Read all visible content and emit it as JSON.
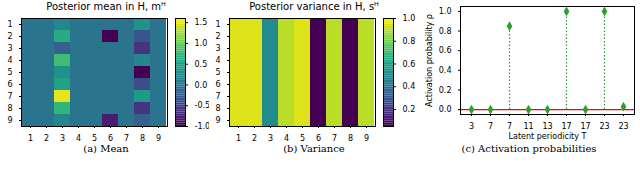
{
  "chart_data": [
    {
      "type": "heatmap",
      "title": "Posterior mean in H, mᴴ",
      "caption": "(a) Mean",
      "x": [
        1,
        2,
        3,
        4,
        5,
        6,
        7,
        8,
        9
      ],
      "y": [
        1,
        2,
        3,
        4,
        5,
        6,
        7,
        8,
        9
      ],
      "cells": [
        [
          0,
          0,
          0.2,
          0,
          0,
          0,
          0,
          0.3,
          0
        ],
        [
          0,
          0,
          0.6,
          0,
          0,
          -1.0,
          0,
          -0.3,
          0
        ],
        [
          0,
          0,
          -0.2,
          0,
          0,
          0,
          0,
          -0.6,
          0
        ],
        [
          0,
          0,
          0.8,
          0,
          0,
          0,
          0,
          0.2,
          0
        ],
        [
          0,
          0,
          0.3,
          0,
          0,
          0,
          0,
          -1.0,
          0
        ],
        [
          0,
          0,
          0.5,
          0,
          0,
          0,
          0,
          -0.4,
          0
        ],
        [
          0,
          0,
          1.5,
          0,
          0,
          0,
          0,
          0.4,
          0
        ],
        [
          0,
          0,
          0.7,
          0,
          0,
          0,
          0,
          -0.6,
          0
        ],
        [
          0,
          0,
          0.2,
          0,
          0,
          -0.8,
          0,
          -0.2,
          0
        ]
      ],
      "colorbar_lim": [
        -1.0,
        1.6
      ],
      "colorbar_ticks": [
        {
          "value": -1,
          "label": "-1.0"
        },
        -0.5,
        {
          "value": 0,
          "label": "0.0"
        },
        0.5,
        {
          "value": 1,
          "label": "1.0"
        },
        1.5
      ]
    },
    {
      "type": "heatmap",
      "title": "Posterior variance in H, sᴴ",
      "caption": "(b) Variance",
      "x": [
        1,
        2,
        3,
        4,
        5,
        6,
        7,
        8,
        9
      ],
      "y": [
        1,
        2,
        3,
        4,
        5,
        6,
        7,
        8,
        9
      ],
      "cells": [
        [
          0.95,
          0.95,
          0.5,
          0.9,
          0.95,
          0.05,
          0.9,
          0.05,
          0.9
        ],
        [
          0.95,
          0.95,
          0.5,
          0.9,
          0.95,
          0.05,
          0.9,
          0.05,
          0.9
        ],
        [
          0.95,
          0.95,
          0.5,
          0.9,
          0.95,
          0.05,
          0.9,
          0.05,
          0.9
        ],
        [
          0.95,
          0.95,
          0.5,
          0.9,
          0.95,
          0.05,
          0.9,
          0.05,
          0.9
        ],
        [
          0.95,
          0.95,
          0.5,
          0.9,
          0.95,
          0.05,
          0.9,
          0.05,
          0.9
        ],
        [
          0.95,
          0.95,
          0.5,
          0.9,
          0.95,
          0.05,
          0.9,
          0.05,
          0.9
        ],
        [
          0.95,
          0.95,
          0.5,
          0.9,
          0.95,
          0.05,
          0.9,
          0.05,
          0.9
        ],
        [
          0.95,
          0.95,
          0.5,
          0.9,
          0.95,
          0.05,
          0.9,
          0.05,
          0.9
        ],
        [
          0.95,
          0.95,
          0.5,
          0.9,
          0.95,
          0.05,
          0.9,
          0.05,
          0.9
        ]
      ],
      "colorbar_lim": [
        0.05,
        1.0
      ],
      "colorbar_ticks": [
        0.2,
        0.4,
        0.6,
        0.8,
        {
          "value": 1,
          "label": "1.0"
        }
      ]
    },
    {
      "type": "stem",
      "caption": "(c) Activation probabilities",
      "x_label": "Latent periodicity T",
      "y_label": "Activation probability ρ",
      "categories": [
        "3",
        "7",
        "7",
        "11",
        "13",
        "17",
        "17",
        "23",
        "23"
      ],
      "values": [
        0,
        0,
        0.85,
        0,
        0,
        1.0,
        0,
        1.0,
        0.03
      ],
      "color": "#2ca02c",
      "marker": "diamond",
      "line_style": "dotted",
      "baseline": 0,
      "ylim": [
        -0.05,
        1.05
      ],
      "yticks": [
        {
          "value": 0,
          "label": "0.0"
        },
        0.2,
        0.4,
        0.6,
        0.8,
        {
          "value": 1,
          "label": "1.0"
        }
      ]
    }
  ]
}
